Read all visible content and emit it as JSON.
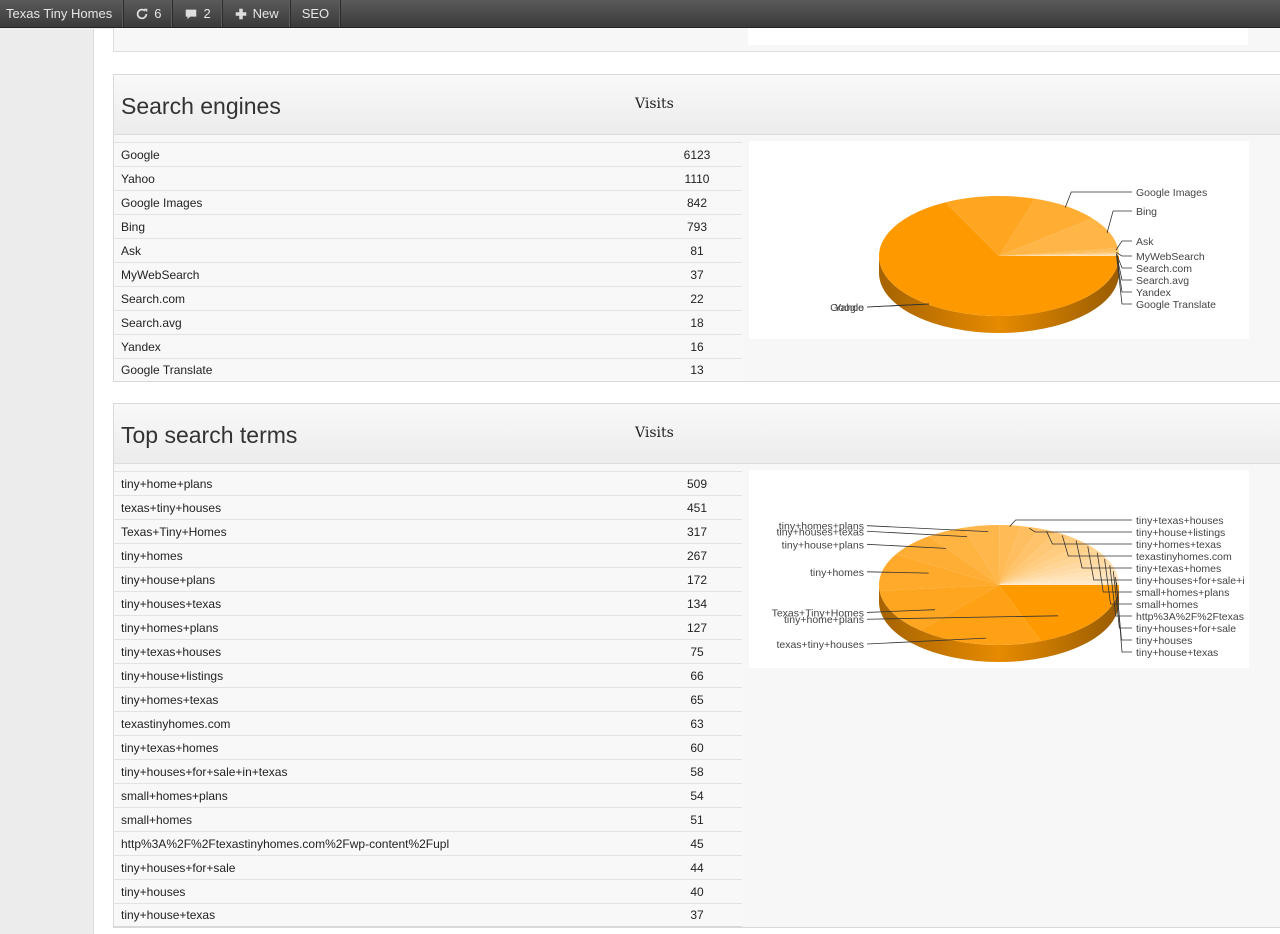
{
  "adminbar": {
    "site_name": "Texas Tiny Homes",
    "updates_count": "6",
    "comments_count": "2",
    "new_label": "New",
    "seo_label": "SEO"
  },
  "search_engines": {
    "title": "Search engines",
    "col_header": "Visits",
    "rows": [
      {
        "name": "Google",
        "visits": "6123"
      },
      {
        "name": "Yahoo",
        "visits": "1110"
      },
      {
        "name": "Google Images",
        "visits": "842"
      },
      {
        "name": "Bing",
        "visits": "793"
      },
      {
        "name": "Ask",
        "visits": "81"
      },
      {
        "name": "MyWebSearch",
        "visits": "37"
      },
      {
        "name": "Search.com",
        "visits": "22"
      },
      {
        "name": "Search.avg",
        "visits": "18"
      },
      {
        "name": "Yandex",
        "visits": "16"
      },
      {
        "name": "Google Translate",
        "visits": "13"
      }
    ]
  },
  "search_terms": {
    "title": "Top search terms",
    "col_header": "Visits",
    "rows": [
      {
        "name": "tiny+home+plans",
        "visits": "509"
      },
      {
        "name": "texas+tiny+houses",
        "visits": "451"
      },
      {
        "name": "Texas+Tiny+Homes",
        "visits": "317"
      },
      {
        "name": "tiny+homes",
        "visits": "267"
      },
      {
        "name": "tiny+house+plans",
        "visits": "172"
      },
      {
        "name": "tiny+houses+texas",
        "visits": "134"
      },
      {
        "name": "tiny+homes+plans",
        "visits": "127"
      },
      {
        "name": "tiny+texas+houses",
        "visits": "75"
      },
      {
        "name": "tiny+house+listings",
        "visits": "66"
      },
      {
        "name": "tiny+homes+texas",
        "visits": "65"
      },
      {
        "name": "texastinyhomes.com",
        "visits": "63"
      },
      {
        "name": "tiny+texas+homes",
        "visits": "60"
      },
      {
        "name": "tiny+houses+for+sale+in+texas",
        "visits": "58"
      },
      {
        "name": "small+homes+plans",
        "visits": "54"
      },
      {
        "name": "small+homes",
        "visits": "51"
      },
      {
        "name": "http%3A%2F%2Ftexastinyhomes.com%2Fwp-content%2Fupl",
        "visits": "45"
      },
      {
        "name": "tiny+houses+for+sale",
        "visits": "44"
      },
      {
        "name": "tiny+houses",
        "visits": "40"
      },
      {
        "name": "tiny+house+texas",
        "visits": "37"
      }
    ]
  },
  "chart_data": [
    {
      "type": "pie",
      "categories": [
        "Google",
        "Yahoo",
        "Google Images",
        "Bing",
        "Ask",
        "MyWebSearch",
        "Search.com",
        "Search.avg",
        "Yandex",
        "Google Translate"
      ],
      "values": [
        6123,
        1110,
        842,
        793,
        81,
        37,
        22,
        18,
        16,
        13
      ],
      "legend_labels": [
        "Google",
        "Yahoo",
        "Google Images",
        "Bing",
        "Ask",
        "MyWebSearch",
        "Search.com",
        "Search.avg",
        "Yandex",
        "Google Translate"
      ],
      "color": "#ff9900"
    },
    {
      "type": "pie",
      "categories": [
        "tiny+home+plans",
        "texas+tiny+houses",
        "Texas+Tiny+Homes",
        "tiny+homes",
        "tiny+house+plans",
        "tiny+houses+texas",
        "tiny+homes+plans",
        "tiny+texas+houses",
        "tiny+house+listings",
        "tiny+homes+texas",
        "texastinyhomes.com",
        "tiny+texas+homes",
        "tiny+houses+for+sale+in+texas",
        "small+homes+plans",
        "small+homes",
        "http%3A%2F%2Ftexastinyhomes.com%2Fwp-content%2Fupl",
        "tiny+houses+for+sale",
        "tiny+houses",
        "tiny+house+texas"
      ],
      "values": [
        509,
        451,
        317,
        267,
        172,
        134,
        127,
        75,
        66,
        65,
        63,
        60,
        58,
        54,
        51,
        45,
        44,
        40,
        37
      ],
      "legend_labels": [
        "tiny+home+plans",
        "texas+tiny+houses",
        "Texas+Tiny+Homes",
        "tiny+homes",
        "tiny+house+plans",
        "tiny+houses+texas",
        "tiny+homes+plans",
        "tiny+texas+houses",
        "tiny+house+listings",
        "tiny+homes+texas",
        "texastinyhomes.com",
        "tiny+texas+homes",
        "tiny+houses+for+sale+i",
        "small+homes+plans",
        "small+homes",
        "http%3A%2F%2Ftexas",
        "tiny+houses+for+sale",
        "tiny+houses",
        "tiny+house+texas"
      ],
      "color": "#ff9900"
    }
  ]
}
